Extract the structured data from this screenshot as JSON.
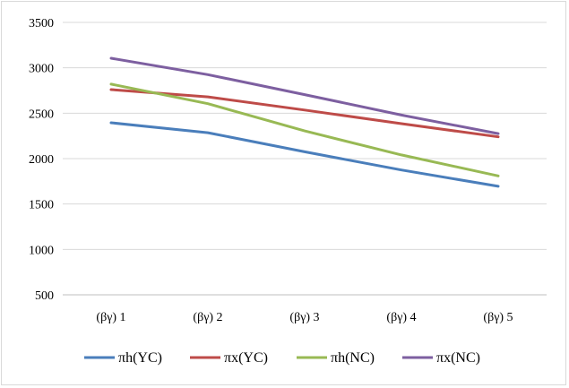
{
  "chart_data": {
    "type": "line",
    "categories": [
      "(βγ) 1",
      "(βγ) 2",
      "(βγ) 3",
      "(βγ) 4",
      "(βγ) 5"
    ],
    "series": [
      {
        "name": "πh(YC)",
        "color": "#4a7ebb",
        "values": [
          2395,
          2285,
          2075,
          1875,
          1695
        ]
      },
      {
        "name": "πx(YC)",
        "color": "#be4b48",
        "values": [
          2760,
          2680,
          2535,
          2385,
          2240
        ]
      },
      {
        "name": "πh(NC)",
        "color": "#98b954",
        "values": [
          2820,
          2605,
          2305,
          2040,
          1810
        ]
      },
      {
        "name": "πx(NC)",
        "color": "#7d5fa0",
        "values": [
          3105,
          2925,
          2705,
          2480,
          2275
        ]
      }
    ],
    "y_ticks": [
      "500",
      "1000",
      "1500",
      "2000",
      "2500",
      "3000",
      "3500"
    ],
    "ylim": [
      500,
      3500
    ],
    "grid": true,
    "legend_position": "bottom",
    "title": "",
    "xlabel": "",
    "ylabel": ""
  }
}
